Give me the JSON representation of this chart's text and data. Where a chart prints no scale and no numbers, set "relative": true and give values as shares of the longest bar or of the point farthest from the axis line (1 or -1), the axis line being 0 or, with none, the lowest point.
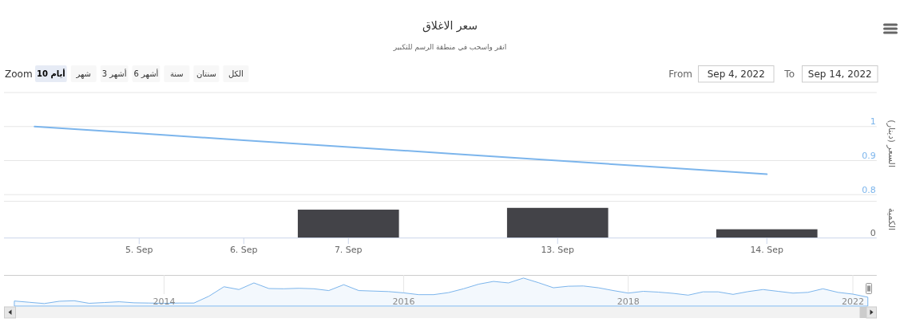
{
  "chart_data": [
    {
      "type": "line",
      "title": "سعر الاغلاق",
      "subtitle": "انقر واسحب في منطقة الرسم للتكبير",
      "ylabel": "السعر (دينار)",
      "categories": [
        null,
        null,
        null,
        null,
        null,
        null,
        null,
        null
      ],
      "series": [
        {
          "color": "#7cb5ec",
          "values": [
            1.0,
            0.98,
            0.96,
            0.94,
            0.92,
            0.9,
            0.88,
            0.86
          ]
        }
      ],
      "ylim": [
        0.8,
        1.1
      ],
      "yticks": [
        0.8,
        0.9,
        1,
        {
          "value": 1.1,
          "label": null
        }
      ],
      "grid": "y",
      "annotations": [
        "Zoom",
        "10 أيام",
        "شهر",
        "3 أشهر",
        "6 أشهر",
        "سنة",
        "سنتان",
        "الكل",
        "From",
        "Sep 4, 2022",
        "To",
        "Sep 14, 2022"
      ]
    },
    {
      "type": "bar",
      "ylabel": "الكمية",
      "categories": [
        null,
        "5. Sep",
        "6. Sep",
        "7. Sep",
        null,
        "13. Sep",
        null,
        "14. Sep"
      ],
      "values": [
        null,
        null,
        null,
        0.94,
        null,
        1,
        null,
        0.28
      ],
      "color": "#434348",
      "relative": true,
      "tick_labels": "x",
      "annotations": [
        "0"
      ]
    },
    {
      "type": "area",
      "categories": [
        null,
        null,
        null,
        null,
        null,
        null,
        null,
        null,
        null,
        null,
        "2014",
        null,
        null,
        null,
        null,
        null,
        null,
        null,
        null,
        null,
        null,
        null,
        null,
        null,
        null,
        null,
        "2016",
        null,
        null,
        null,
        null,
        null,
        null,
        null,
        null,
        null,
        null,
        null,
        null,
        null,
        null,
        "2018",
        null,
        null,
        null,
        null,
        null,
        null,
        null,
        null,
        null,
        null,
        null,
        null,
        null,
        null,
        "2022",
        null
      ],
      "series": [
        {
          "color": "#7cb5ec",
          "values": [
            0.1,
            0.05,
            0,
            0.09,
            0.11,
            0.01,
            0.04,
            0.07,
            0.03,
            0.02,
            0.01,
            0.02,
            0.02,
            0.29,
            0.66,
            0.55,
            0.81,
            0.59,
            0.58,
            0.6,
            0.58,
            0.51,
            0.74,
            0.51,
            0.49,
            0.47,
            0.42,
            0.35,
            0.35,
            0.43,
            0.58,
            0.76,
            0.87,
            0.81,
            1,
            0.82,
            0.62,
            0.68,
            0.69,
            0.62,
            0.51,
            0.41,
            0.48,
            0.45,
            0.4,
            0.33,
            0.46,
            0.46,
            0.36,
            0.47,
            0.55,
            0.48,
            0.41,
            0.44,
            0.58,
            0.44,
            0.37,
            0.25
          ]
        }
      ],
      "relative": true,
      "grid": "x",
      "tick_labels": "x"
    }
  ]
}
